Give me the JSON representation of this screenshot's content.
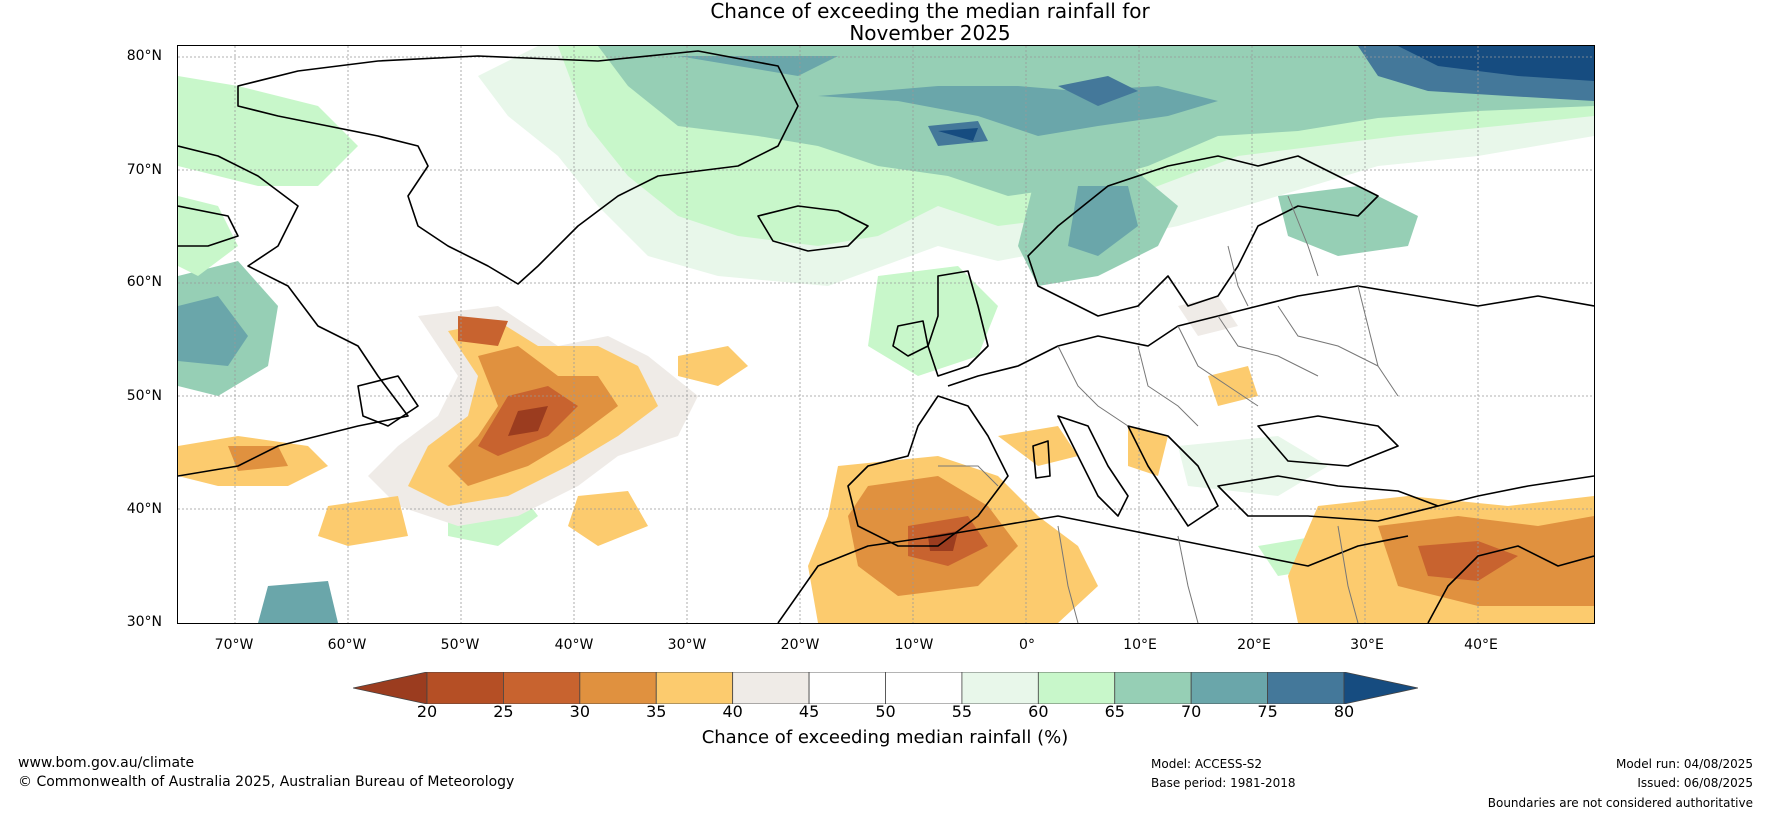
{
  "title": {
    "line1": "Chance of exceeding the median rainfall for",
    "line2": "November 2025"
  },
  "map": {
    "lat_labels": [
      "80°N",
      "70°N",
      "60°N",
      "50°N",
      "40°N",
      "30°N"
    ],
    "lon_labels": [
      "70°W",
      "60°W",
      "50°W",
      "40°W",
      "30°W",
      "20°W",
      "10°W",
      "0°",
      "10°E",
      "20°E",
      "30°E",
      "40°E"
    ],
    "lat_range": [
      30,
      81
    ],
    "lon_range": [
      -75,
      50
    ]
  },
  "colorbar": {
    "ticks": [
      "20",
      "25",
      "30",
      "35",
      "40",
      "45",
      "50",
      "55",
      "60",
      "65",
      "70",
      "75",
      "80"
    ],
    "colors": [
      "#9b3c1f",
      "#b54f25",
      "#c8632f",
      "#e0913f",
      "#fccb6e",
      "#efebe7",
      "#ffffff",
      "#ffffff",
      "#e8f7ea",
      "#c8f7ca",
      "#96cfb5",
      "#6aa6aa",
      "#44789a",
      "#164c80"
    ],
    "label": "Chance of exceeding median rainfall (%)"
  },
  "footer": {
    "website": "www.bom.gov.au/climate",
    "copyright": "© Commonwealth of Australia 2025, Australian Bureau of Meteorology",
    "model": "Model: ACCESS-S2",
    "base_period": "Base period: 1981-2018",
    "model_run": "Model run: 04/08/2025",
    "issued": "Issued: 06/08/2025",
    "disclaimer": "Boundaries are not considered authoritative"
  }
}
